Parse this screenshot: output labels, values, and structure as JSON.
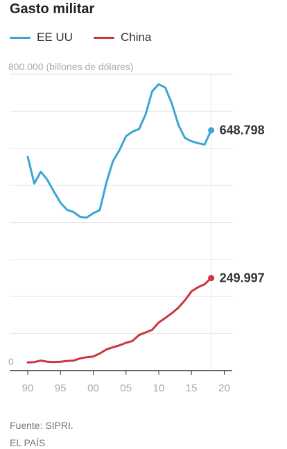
{
  "chart_data": {
    "type": "line",
    "title": "Gasto militar",
    "ylabel": "(billones de dólares)",
    "ylim": [
      0,
      800000
    ],
    "xlim": [
      1988,
      2020
    ],
    "y_gridlines": [
      100000,
      200000,
      300000,
      400000,
      500000,
      600000,
      700000
    ],
    "y_tick_labels": [
      {
        "value": 0,
        "label": "0"
      },
      {
        "value": 800000,
        "label": "800.000 (billones de dólares)"
      }
    ],
    "x_ticks": [
      {
        "value": 1990,
        "label": "90"
      },
      {
        "value": 1995,
        "label": "95"
      },
      {
        "value": 2000,
        "label": "00"
      },
      {
        "value": 2005,
        "label": "05"
      },
      {
        "value": 2010,
        "label": "10"
      },
      {
        "value": 2015,
        "label": "15"
      },
      {
        "value": 2020,
        "label": "20"
      }
    ],
    "legend_position": "top-left",
    "grid": true,
    "x": [
      1990,
      1991,
      1992,
      1993,
      1994,
      1995,
      1996,
      1997,
      1998,
      1999,
      2000,
      2001,
      2002,
      2003,
      2004,
      2005,
      2006,
      2007,
      2008,
      2009,
      2010,
      2011,
      2012,
      2013,
      2014,
      2015,
      2016,
      2017,
      2018
    ],
    "series": [
      {
        "name": "EE UU",
        "color": "#3aa5d6",
        "values": [
          577000,
          505000,
          537000,
          515000,
          483000,
          453000,
          434000,
          428000,
          415000,
          413000,
          425000,
          433000,
          507000,
          565000,
          595000,
          633000,
          645000,
          652000,
          692000,
          754000,
          773000,
          764000,
          721000,
          663000,
          628000,
          619000,
          614000,
          610000,
          648798
        ],
        "end_label": "648.798"
      },
      {
        "name": "China",
        "color": "#c9373f",
        "values": [
          22000,
          23000,
          27000,
          24000,
          23000,
          24000,
          26000,
          27000,
          33000,
          36000,
          38000,
          46000,
          57000,
          63000,
          68000,
          75000,
          80000,
          96000,
          103000,
          110000,
          130000,
          142000,
          155000,
          170000,
          190000,
          214000,
          225000,
          233000,
          249997
        ],
        "end_label": "249.997"
      }
    ]
  },
  "footer": {
    "source": "Fuente: SIPRI.",
    "brand": "EL PAÍS"
  }
}
